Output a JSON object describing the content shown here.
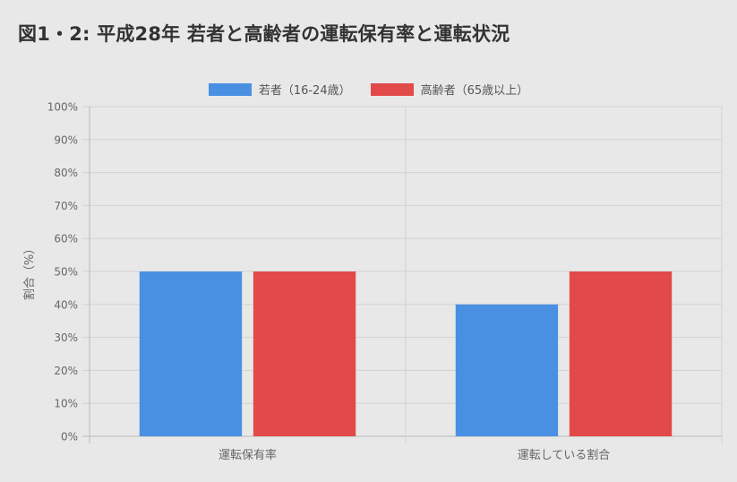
{
  "chart_data": {
    "type": "bar",
    "title": "図1・2: 平成28年 若者と高齢者の運転保有率と運転状況",
    "ylabel": "割合（%）",
    "xlabel": "",
    "ylim": [
      0,
      100
    ],
    "y_ticks": [
      "0%",
      "10%",
      "20%",
      "30%",
      "40%",
      "50%",
      "60%",
      "70%",
      "80%",
      "90%",
      "100%"
    ],
    "categories": [
      "運転保有率",
      "運転している割合"
    ],
    "series": [
      {
        "name": "若者（16-24歳）",
        "values": [
          50,
          40
        ],
        "color": "#4a90e2"
      },
      {
        "name": "高齢者（65歳以上）",
        "values": [
          50,
          50
        ],
        "color": "#e24a4a"
      }
    ],
    "grid": true,
    "legend_position": "top-center"
  }
}
